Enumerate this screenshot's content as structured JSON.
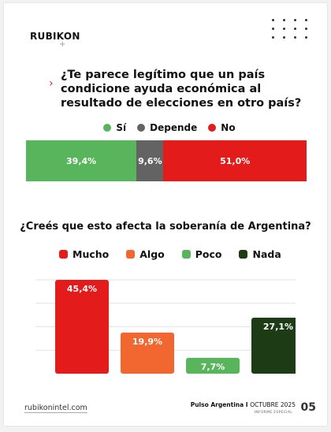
{
  "brand": "RUBIKON",
  "question1": "¿Te parece legítimo que un país condicione ayuda económica al resultado de elecciones en otro país?",
  "question2": "¿Creés que esto afecta la soberanía de Argentina?",
  "colors": {
    "si": "#59b55b",
    "depende": "#636363",
    "no": "#e31b1b",
    "mucho": "#e31b1b",
    "algo": "#f2662f",
    "poco": "#59b55b",
    "nada": "#1d3b15"
  },
  "chart_data": [
    {
      "type": "bar",
      "orientation": "horizontal-stacked",
      "categories": [
        "Sí",
        "Depende",
        "No"
      ],
      "values": [
        39.4,
        9.6,
        51.0
      ],
      "value_labels": [
        "39,4%",
        "9,6%",
        "51,0%"
      ],
      "legend": [
        "Sí",
        "Depende",
        "No"
      ]
    },
    {
      "type": "bar",
      "categories": [
        "Mucho",
        "Algo",
        "Poco",
        "Nada"
      ],
      "values": [
        45.4,
        19.9,
        7.7,
        27.1
      ],
      "value_labels": [
        "45,4%",
        "19,9%",
        "7,7%",
        "27,1%"
      ],
      "ylim": [
        0,
        45.4
      ],
      "grid": true
    }
  ],
  "footer": {
    "website": "rubikonintel.com",
    "report_bold": "Pulso Argentina I",
    "report_thin": "OCTUBRE 2025",
    "subtitle": "INFORME ESPECIAL",
    "page": "05"
  }
}
